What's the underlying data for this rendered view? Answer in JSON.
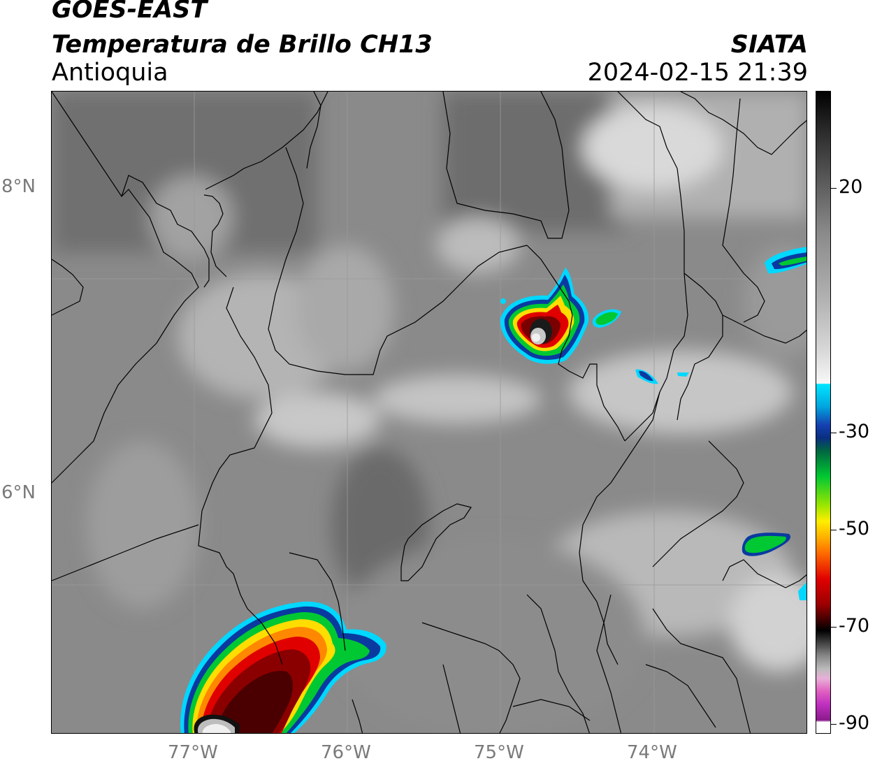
{
  "header": {
    "satellite": "GOES-EAST",
    "product": "Temperatura de Brillo CH13",
    "region": "Antioquia",
    "brand": "SIATA",
    "datetime": "2024-02-15 21:39"
  },
  "axes": {
    "lat_labels": [
      "8°N",
      "6°N"
    ],
    "lon_labels": [
      "77°W",
      "76°W",
      "75°W",
      "74°W"
    ]
  },
  "colorbar": {
    "labels": [
      "20",
      "-30",
      "-50",
      "-70",
      "-90"
    ],
    "colors": {
      "white": "#ffffff",
      "cyan": "#00e5ff",
      "blue": "#0a2fa0",
      "green": "#00c832",
      "yellow": "#ffee00",
      "orange": "#ff8c00",
      "red": "#e00000",
      "darkred": "#5a0000",
      "black": "#000000",
      "magenta": "#c020c0"
    }
  }
}
